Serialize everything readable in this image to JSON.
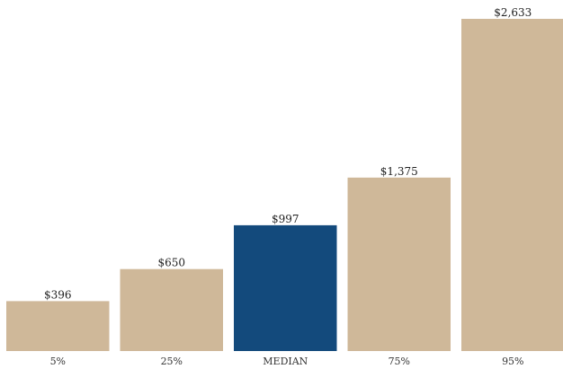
{
  "chart_data": {
    "type": "bar",
    "categories": [
      "5%",
      "25%",
      "MEDIAN",
      "75%",
      "95%"
    ],
    "values": [
      396,
      650,
      997,
      1375,
      2633
    ],
    "value_labels": [
      "$396",
      "$650",
      "$997",
      "$1,375",
      "$2,633"
    ],
    "highlight_category": "MEDIAN",
    "ylim": [
      0,
      2633
    ],
    "grid": false,
    "colors": {
      "bar": "#cfb899",
      "highlight": "#134a7c",
      "text": "#222222"
    },
    "title": "",
    "xlabel": "",
    "ylabel": ""
  }
}
